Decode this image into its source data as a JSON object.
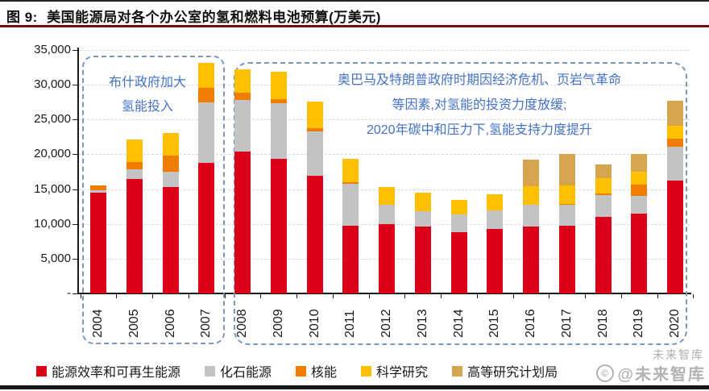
{
  "header": {
    "fig_label": "图 9:",
    "title": "美国能源局对各个办公室的氢和燃料电池预算(万美元)"
  },
  "annotations": {
    "bush": {
      "lines": [
        "布什政府加大",
        "氢能投入"
      ]
    },
    "obama": {
      "lines": [
        "奥巴马及特朗普政府时期因经济危机、页岩气革命",
        "等因素,对氢能的投资力度放缓;",
        "2020年碳中和压力下,氢能支持力度提升"
      ]
    }
  },
  "watermark": {
    "small": "未来智库",
    "large": "@未来智库",
    "logo": "wm-circle-logo"
  },
  "colors": {
    "eere_red": "#dc0018",
    "fossil_gray": "#c3c3c3",
    "nuclear_orange": "#f07d00",
    "science_yellow": "#ffc000",
    "arpa_tan": "#d5a64e",
    "annotation_blue": "#4472c4",
    "dashed_box_blue": "#7b97c0",
    "header_rule_red": "#7a0c0c"
  },
  "chart_data": {
    "type": "bar",
    "stacked": true,
    "title": "美国能源局对各个办公室的氢和燃料电池预算(万美元)",
    "xlabel": "",
    "ylabel": "",
    "ylim": [
      0,
      35000
    ],
    "grid": true,
    "legend_position": "bottom",
    "categories": [
      "2004",
      "2005",
      "2006",
      "2007",
      "2008",
      "2009",
      "2010",
      "2011",
      "2012",
      "2013",
      "2014",
      "2015",
      "2016",
      "2017",
      "2018",
      "2019",
      "2020"
    ],
    "series": [
      {
        "name": "能源效率和可再生能源",
        "color": "#dc0018",
        "values": [
          14500,
          16400,
          15300,
          18800,
          20400,
          19300,
          16900,
          9700,
          10000,
          9600,
          8800,
          9300,
          9600,
          9700,
          11000,
          11500,
          16200
        ]
      },
      {
        "name": "化石能源",
        "color": "#c3c3c3",
        "values": [
          300,
          1400,
          2200,
          8700,
          7400,
          8000,
          6400,
          6100,
          2800,
          2200,
          2600,
          2600,
          3100,
          3000,
          3100,
          2500,
          4900
        ]
      },
      {
        "name": "核能",
        "color": "#f07d00",
        "values": [
          700,
          1100,
          2300,
          2100,
          1000,
          600,
          500,
          200,
          0,
          0,
          0,
          0,
          0,
          200,
          300,
          1600,
          1100
        ]
      },
      {
        "name": "科学研究",
        "color": "#ffc000",
        "values": [
          0,
          3200,
          3300,
          3500,
          3400,
          4000,
          3800,
          3400,
          2500,
          2700,
          2100,
          2300,
          2700,
          2600,
          2200,
          1900,
          1900
        ]
      },
      {
        "name": "高等研究计划局",
        "color": "#d5a64e",
        "values": [
          0,
          0,
          0,
          0,
          0,
          0,
          0,
          0,
          0,
          0,
          0,
          0,
          3800,
          4500,
          2000,
          2600,
          3600
        ]
      }
    ],
    "y_axis": {
      "max": 35000,
      "step": 5000,
      "tick_labels": [
        "35,000",
        "30,000",
        "25,000",
        "20,000",
        "15,000",
        "10,000",
        "5,000",
        "-"
      ]
    }
  }
}
